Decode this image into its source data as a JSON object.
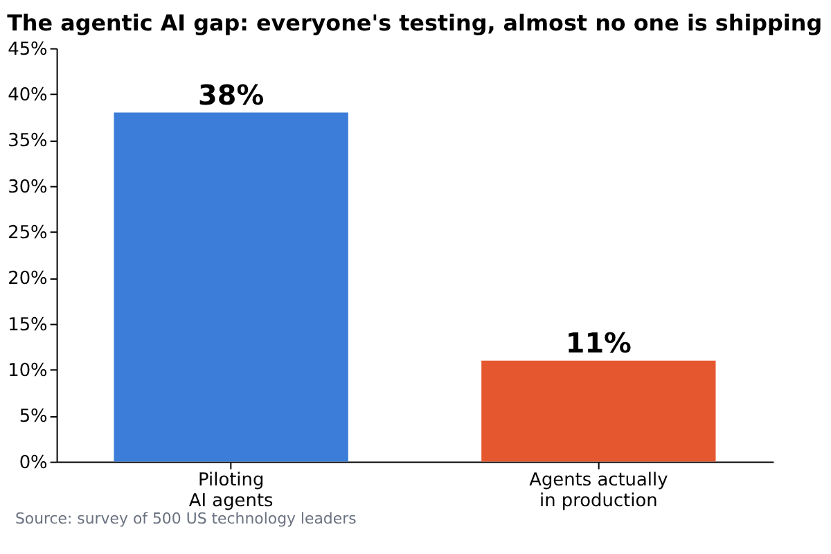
{
  "chart_data": {
    "type": "bar",
    "title": "The agentic AI gap: everyone's testing, almost no one is shipping",
    "categories": [
      "Piloting\nAI agents",
      "Agents actually\nin production"
    ],
    "values": [
      38,
      11
    ],
    "colors": [
      "#3b7dd8",
      "#e5572f"
    ],
    "value_labels": [
      "38%",
      "11%"
    ],
    "ylim": [
      0,
      45
    ],
    "yticks": [
      {
        "value": 0,
        "label": "0%"
      },
      {
        "value": 5,
        "label": "5%"
      },
      {
        "value": 10,
        "label": "10%"
      },
      {
        "value": 15,
        "label": "15%"
      },
      {
        "value": 20,
        "label": "20%"
      },
      {
        "value": 25,
        "label": "25%"
      },
      {
        "value": 30,
        "label": "30%"
      },
      {
        "value": 35,
        "label": "35%"
      },
      {
        "value": 40,
        "label": "40%"
      },
      {
        "value": 45,
        "label": "45%"
      }
    ],
    "grid": false,
    "annotations": [
      "Source: survey of 500 US technology leaders"
    ]
  }
}
